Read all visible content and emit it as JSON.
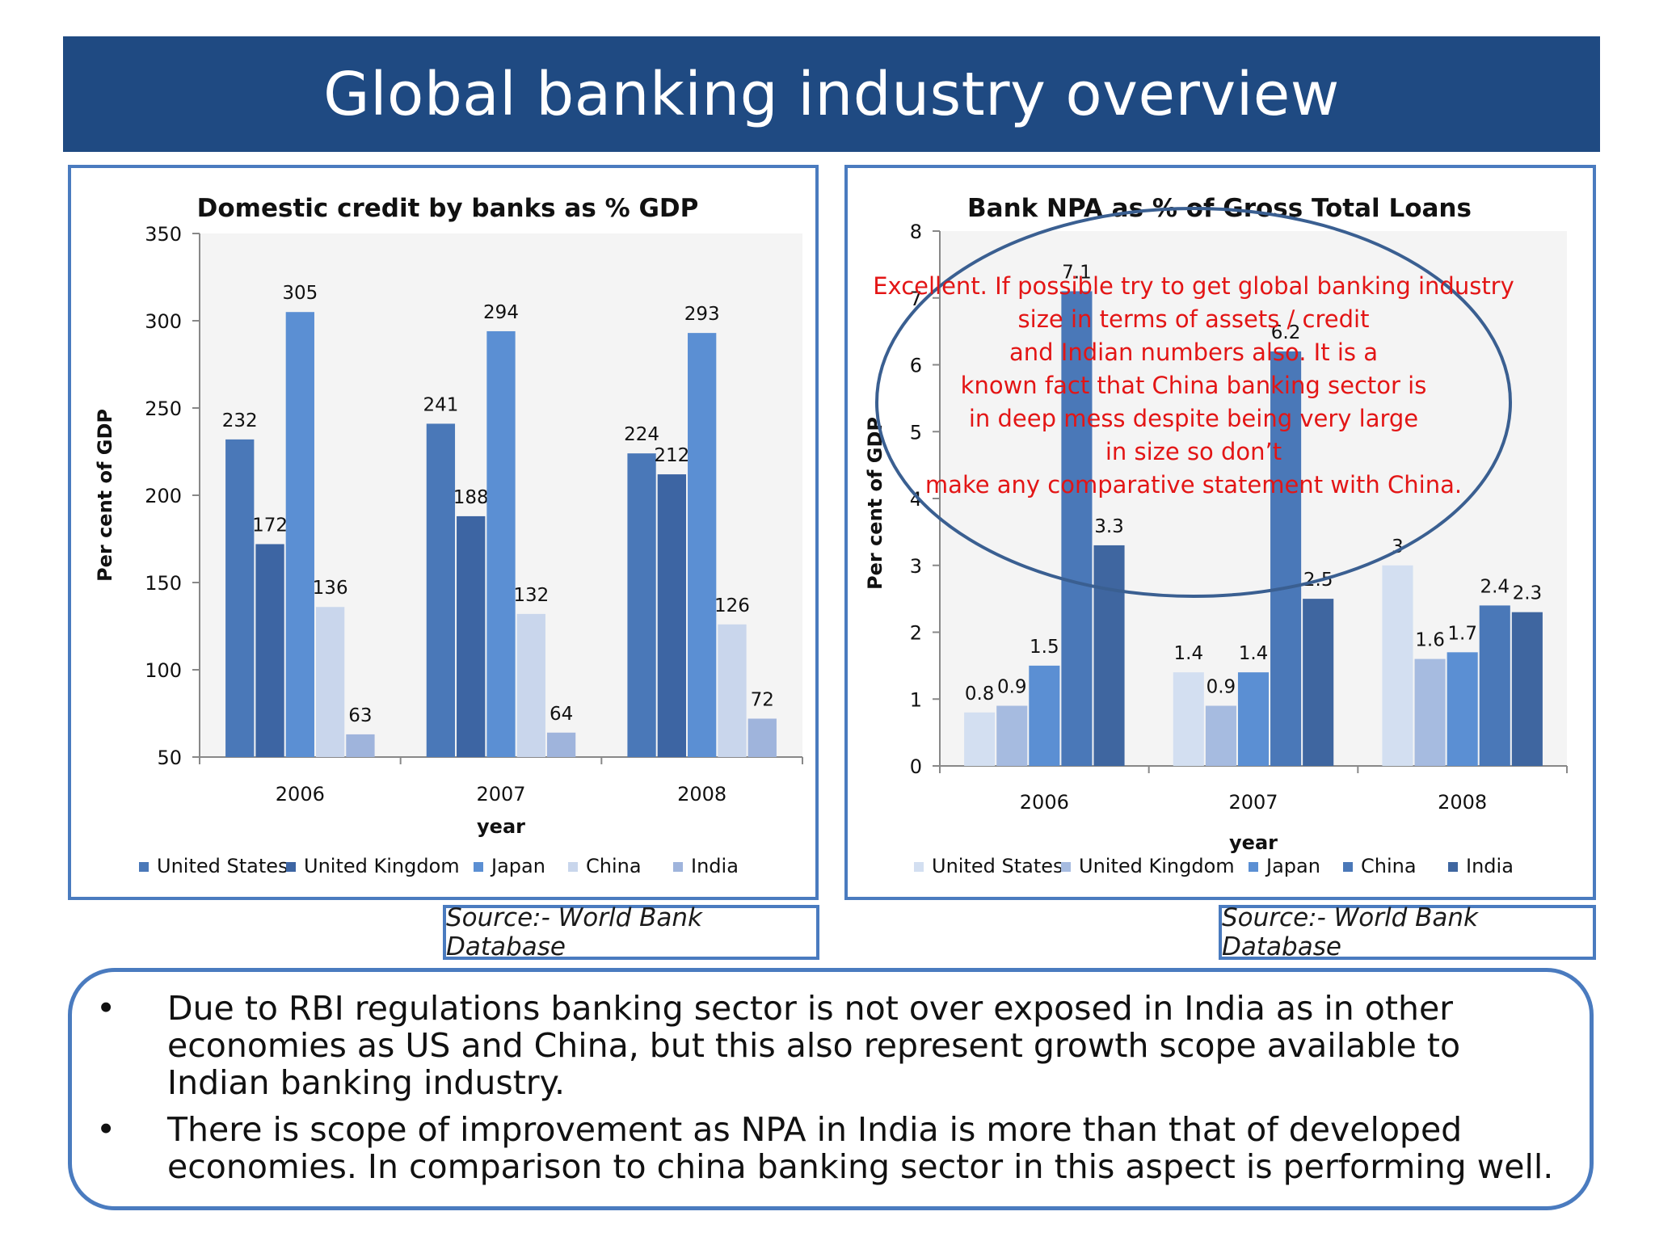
{
  "page": {
    "title": "Global banking industry overview"
  },
  "charts": {
    "credit_source": "Source:- World Bank Database",
    "npa_source": "Source:- World Bank Database",
    "annotation": "Excellent. If possible try to get global banking industry size in terms of assets / credit and Indian numbers also. It is a known fact that China banking sector is in deep mess despite being very large in size  so don’t make any comparative statement with China."
  },
  "notes": {
    "bullet_symbol": "•",
    "items": [
      "Due to RBI regulations banking sector is not over exposed in India as in other economies as US and China, but this also represent growth scope available to Indian banking industry.",
      "There is scope of improvement as NPA in India is more than that of developed economies. In comparison to china banking sector in this aspect is performing well."
    ]
  },
  "chart_data": [
    {
      "type": "bar",
      "title": "Domestic credit by banks as % GDP",
      "xlabel": "year",
      "ylabel": "Per cent of GDP",
      "ylim": [
        50,
        350
      ],
      "yticks": [
        50,
        100,
        150,
        200,
        250,
        300,
        350
      ],
      "categories": [
        "2006",
        "2007",
        "2008"
      ],
      "legend_position": "bottom",
      "series": [
        {
          "name": "United States",
          "color": "#4a78b8",
          "values": [
            232,
            241,
            224
          ]
        },
        {
          "name": "United Kingdom",
          "color": "#3d65a3",
          "values": [
            172,
            188,
            212
          ]
        },
        {
          "name": "Japan",
          "color": "#5b8fd3",
          "values": [
            305,
            294,
            293
          ]
        },
        {
          "name": "China",
          "color": "#c9d6ec",
          "values": [
            136,
            132,
            126
          ]
        },
        {
          "name": "India",
          "color": "#9fb4dc",
          "values": [
            63,
            64,
            72
          ]
        }
      ]
    },
    {
      "type": "bar",
      "title": "Bank NPA as % of Gross Total Loans",
      "xlabel": "year",
      "ylabel": "Per cent of GDP",
      "ylim": [
        0,
        8
      ],
      "yticks": [
        0,
        1,
        2,
        3,
        4,
        5,
        6,
        7,
        8
      ],
      "categories": [
        "2006",
        "2007",
        "2008"
      ],
      "legend_position": "bottom",
      "series": [
        {
          "name": "United States",
          "color": "#d3dff1",
          "values": [
            0.8,
            1.4,
            3
          ]
        },
        {
          "name": "United Kingdom",
          "color": "#a6bbe0",
          "values": [
            0.9,
            0.9,
            1.6
          ]
        },
        {
          "name": "Japan",
          "color": "#5b8fd3",
          "values": [
            1.5,
            1.4,
            1.7
          ]
        },
        {
          "name": "China",
          "color": "#4a78b8",
          "values": [
            7.1,
            6.2,
            2.4
          ]
        },
        {
          "name": "India",
          "color": "#3f66a0",
          "values": [
            3.3,
            2.5,
            2.3
          ]
        }
      ]
    }
  ]
}
